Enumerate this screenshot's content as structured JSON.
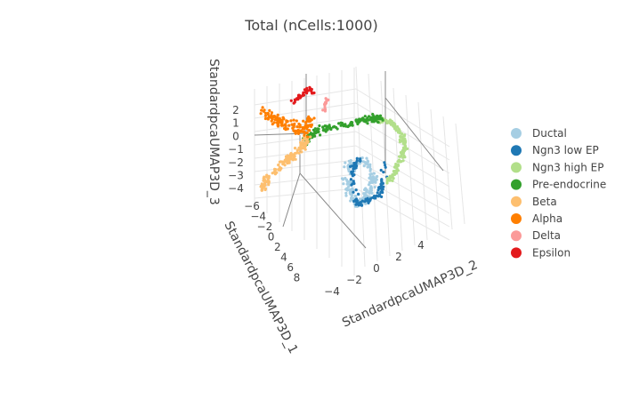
{
  "chart_data": {
    "type": "scatter3d",
    "title": "Total (nCells:1000)",
    "axes": {
      "x": {
        "label": "StandardpcaUMAP3D_1",
        "ticks": [
          "−6",
          "−4",
          "−2",
          "0",
          "2",
          "4",
          "6",
          "8"
        ]
      },
      "y": {
        "label": "StandardpcaUMAP3D_2",
        "ticks": [
          "−4",
          "−2",
          "0",
          "2",
          "4"
        ]
      },
      "z": {
        "label": "StandardpcaUMAP3D_3",
        "ticks": [
          "2",
          "1",
          "0",
          "−1",
          "−2",
          "−3",
          "−4"
        ]
      }
    },
    "grid": true,
    "legend_position": "right",
    "series": [
      {
        "name": "Ductal",
        "color": "#a6cee3"
      },
      {
        "name": "Ngn3 low EP",
        "color": "#1f78b4"
      },
      {
        "name": "Ngn3 high EP",
        "color": "#b2df8a"
      },
      {
        "name": "Pre-endocrine",
        "color": "#33a02c"
      },
      {
        "name": "Beta",
        "color": "#fdbf6f"
      },
      {
        "name": "Alpha",
        "color": "#ff7f00"
      },
      {
        "name": "Delta",
        "color": "#fb9a99"
      },
      {
        "name": "Epsilon",
        "color": "#e31a1c"
      }
    ]
  }
}
